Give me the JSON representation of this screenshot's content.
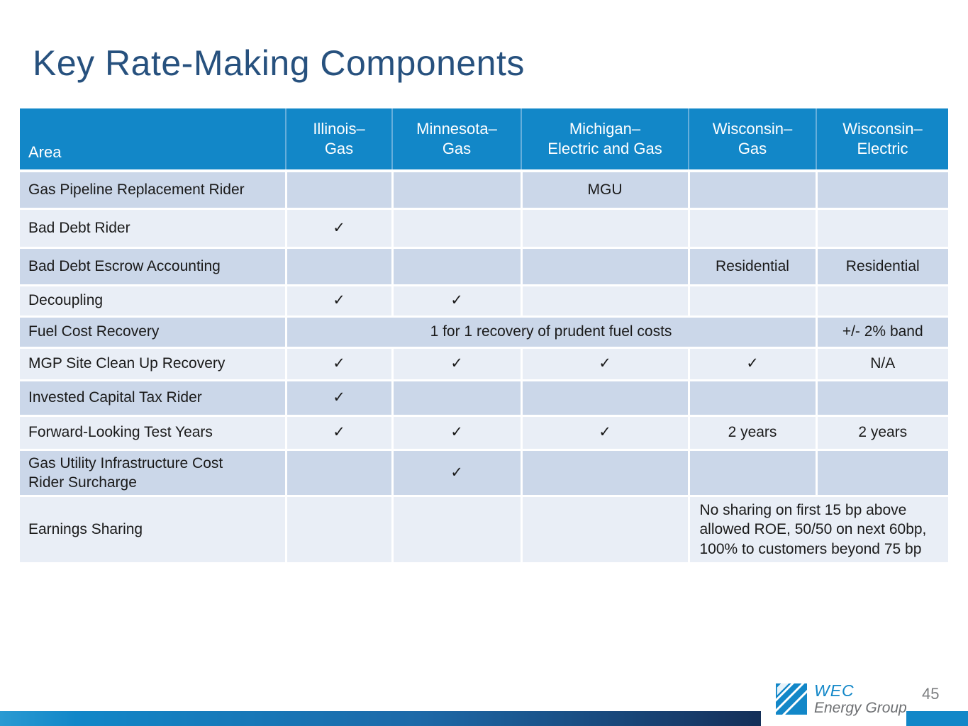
{
  "slide": {
    "title": "Key Rate-Making Components",
    "page_number": "45",
    "logo": {
      "line1": "WEC",
      "line2": "Energy Group"
    },
    "colors": {
      "title_text": "#27517e",
      "header_blue": "#1287c8",
      "row_dark": "#cbd7e9",
      "row_light": "#e9eef6",
      "footer_gradient_start": "#2a9ad2",
      "footer_gradient_end": "#142f58",
      "body_text": "#1a1a1a",
      "page_number_gray": "#7c7e80"
    }
  },
  "table": {
    "columns": [
      "Area",
      "Illinois–\nGas",
      "Minnesota–\nGas",
      "Michigan–\nElectric and Gas",
      "Wisconsin–\nGas",
      "Wisconsin–\nElectric"
    ],
    "checkmark_glyph": "✓",
    "rows": [
      {
        "label": "Gas Pipeline Replacement Rider",
        "cells": [
          "",
          "",
          "MGU",
          "",
          ""
        ]
      },
      {
        "label": "Bad Debt Rider",
        "cells": [
          "✓",
          "",
          "",
          "",
          ""
        ]
      },
      {
        "label": "Bad Debt Escrow Accounting",
        "cells": [
          "",
          "",
          "",
          "Residential",
          "Residential"
        ]
      },
      {
        "label": "Decoupling",
        "cells": [
          "✓",
          "✓",
          "",
          "",
          ""
        ]
      },
      {
        "label": "Fuel Cost Recovery",
        "cells": [
          {
            "span": 4,
            "text": "1 for 1 recovery of prudent fuel costs"
          },
          {
            "span": 1,
            "text": "+/- 2% band"
          }
        ]
      },
      {
        "label": "MGP Site Clean Up Recovery",
        "cells": [
          "✓",
          "✓",
          "✓",
          "✓",
          "N/A"
        ]
      },
      {
        "label": "Invested Capital Tax Rider",
        "cells": [
          "✓",
          "",
          "",
          "",
          ""
        ]
      },
      {
        "label": "Forward-Looking Test Years",
        "cells": [
          "✓",
          "✓",
          "✓",
          "2 years",
          "2 years"
        ]
      },
      {
        "label": "Gas Utility Infrastructure Cost\nRider Surcharge",
        "cells": [
          "",
          "✓",
          "",
          "",
          ""
        ]
      },
      {
        "label": "Earnings Sharing",
        "cells": [
          "",
          "",
          "",
          {
            "span": 2,
            "align": "left",
            "text": "No sharing on first 15 bp above allowed ROE, 50/50 on next 60bp, 100% to customers beyond 75 bp"
          }
        ]
      }
    ]
  }
}
